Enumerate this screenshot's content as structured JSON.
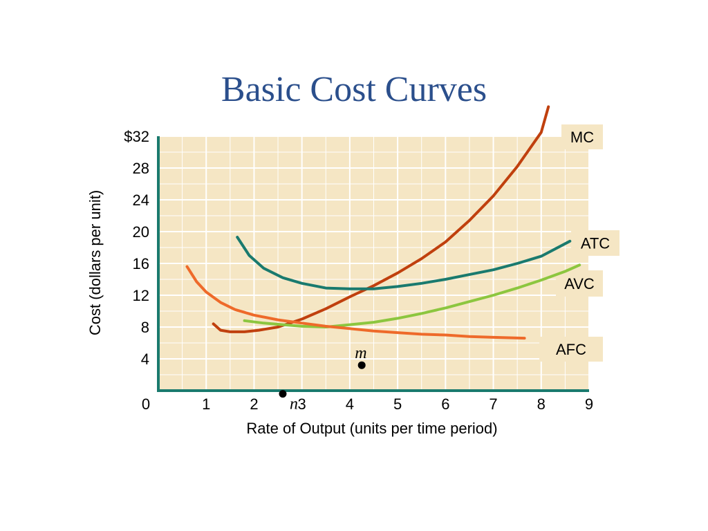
{
  "slide": {
    "title": "Basic Cost Curves"
  },
  "chart_data": {
    "type": "line",
    "title": "Basic Cost Curves",
    "xlabel": "Rate of Output (units per time period)",
    "ylabel": "Cost (dollars per unit)",
    "xlim": [
      0,
      9
    ],
    "ylim": [
      0,
      32
    ],
    "x_ticks": [
      "0",
      "1",
      "2",
      "3",
      "4",
      "5",
      "6",
      "7",
      "8",
      "9"
    ],
    "y_ticks": [
      "4",
      "8",
      "12",
      "16",
      "20",
      "24",
      "28",
      "$32"
    ],
    "grid": true,
    "plot_background": "#f5e6c4",
    "series": [
      {
        "name": "MC",
        "color": "#c0400e",
        "points": [
          [
            1.15,
            8.4
          ],
          [
            1.3,
            7.6
          ],
          [
            1.5,
            7.4
          ],
          [
            1.8,
            7.4
          ],
          [
            2.1,
            7.6
          ],
          [
            2.5,
            8.0
          ],
          [
            3.0,
            9.0
          ],
          [
            3.5,
            10.3
          ],
          [
            4.0,
            11.8
          ],
          [
            4.5,
            13.2
          ],
          [
            5.0,
            14.8
          ],
          [
            5.5,
            16.6
          ],
          [
            6.0,
            18.7
          ],
          [
            6.5,
            21.4
          ],
          [
            7.0,
            24.5
          ],
          [
            7.5,
            28.2
          ],
          [
            8.0,
            32.5
          ],
          [
            8.15,
            35.7
          ]
        ]
      },
      {
        "name": "ATC",
        "color": "#1a7a6e",
        "points": [
          [
            1.65,
            19.3
          ],
          [
            1.9,
            17.0
          ],
          [
            2.2,
            15.4
          ],
          [
            2.6,
            14.2
          ],
          [
            3.0,
            13.5
          ],
          [
            3.5,
            12.9
          ],
          [
            4.0,
            12.8
          ],
          [
            4.5,
            12.8
          ],
          [
            5.0,
            13.1
          ],
          [
            5.5,
            13.5
          ],
          [
            6.0,
            14.0
          ],
          [
            6.5,
            14.6
          ],
          [
            7.0,
            15.2
          ],
          [
            7.5,
            16.0
          ],
          [
            8.0,
            16.9
          ],
          [
            8.6,
            18.8
          ]
        ]
      },
      {
        "name": "AVC",
        "color": "#8cc63f",
        "points": [
          [
            1.8,
            8.8
          ],
          [
            2.2,
            8.5
          ],
          [
            2.6,
            8.3
          ],
          [
            3.0,
            8.1
          ],
          [
            3.5,
            8.0
          ],
          [
            4.0,
            8.3
          ],
          [
            4.5,
            8.6
          ],
          [
            5.0,
            9.1
          ],
          [
            5.5,
            9.7
          ],
          [
            6.0,
            10.4
          ],
          [
            6.5,
            11.2
          ],
          [
            7.0,
            12.0
          ],
          [
            7.5,
            12.9
          ],
          [
            8.0,
            13.9
          ],
          [
            8.5,
            15.0
          ],
          [
            8.8,
            15.8
          ]
        ]
      },
      {
        "name": "AFC",
        "color": "#ee6a2a",
        "points": [
          [
            0.6,
            15.6
          ],
          [
            0.8,
            13.7
          ],
          [
            1.0,
            12.4
          ],
          [
            1.3,
            11.1
          ],
          [
            1.6,
            10.2
          ],
          [
            2.0,
            9.5
          ],
          [
            2.5,
            8.9
          ],
          [
            3.0,
            8.5
          ],
          [
            3.5,
            8.1
          ],
          [
            4.0,
            7.8
          ],
          [
            4.5,
            7.5
          ],
          [
            5.0,
            7.3
          ],
          [
            5.5,
            7.1
          ],
          [
            6.0,
            7.0
          ],
          [
            6.5,
            6.8
          ],
          [
            7.0,
            6.7
          ],
          [
            7.65,
            6.6
          ]
        ]
      }
    ],
    "points": [
      {
        "label": "m",
        "x": 4.25,
        "y": 3.2
      },
      {
        "label": "n",
        "x": 2.6,
        "y": -0.4
      }
    ]
  }
}
